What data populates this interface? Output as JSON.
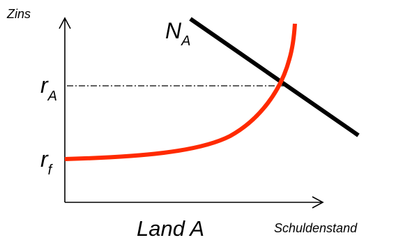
{
  "diagram": {
    "title": "Land A",
    "y_axis_label": "Zins",
    "x_axis_label": "Schuldenstand",
    "curve_N": {
      "main": "N",
      "sub": "A",
      "color": "#000000"
    },
    "rate_A": {
      "main": "r",
      "sub": "A"
    },
    "rate_f": {
      "main": "r",
      "sub": "f"
    },
    "supply_curve_color": "#ff2a00",
    "axis_color": "#000000",
    "guide_line_style": "dash-dot"
  }
}
